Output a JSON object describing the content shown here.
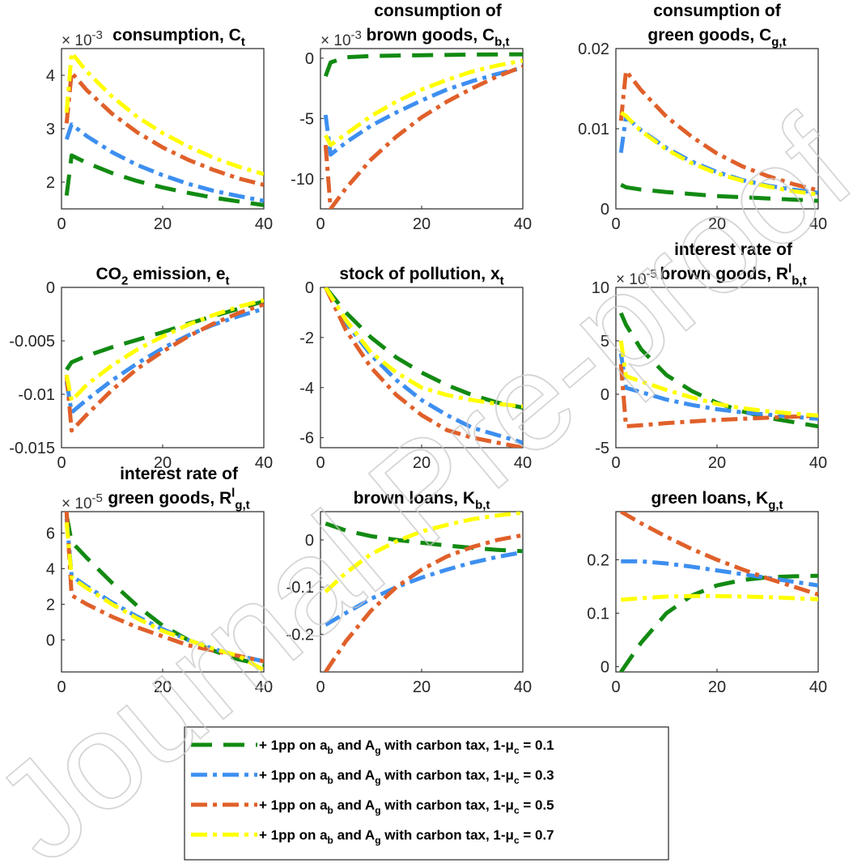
{
  "legend": [
    {
      "text": "+ 1pp on a_b and A_g with carbon tax, 1-μ_c = 0.1",
      "color": "#128a12",
      "dash": "26,14"
    },
    {
      "text": "+ 1pp on a_b and A_g with carbon tax, 1-μ_c = 0.3",
      "color": "#3d8ff0",
      "dash": "20,7,5,7"
    },
    {
      "text": "+ 1pp on a_b and A_g with carbon tax, 1-μ_c = 0.5",
      "color": "#e0602a",
      "dash": "20,7,5,7"
    },
    {
      "text": "+ 1pp on a_b and A_g with carbon tax, 1-μ_c = 0.7",
      "color": "#ffff00",
      "dash": "20,7,5,7"
    }
  ],
  "watermark": "Journal Pre-proof",
  "chart_data": [
    {
      "type": "line",
      "title": [
        "consumption, C_t"
      ],
      "exponent": "× 10^-3",
      "xlim": [
        0,
        40
      ],
      "ylim": [
        1.5,
        4.5
      ],
      "xticks": [
        0,
        20,
        40
      ],
      "yticks": [
        2,
        3,
        4
      ],
      "series": [
        {
          "x": [
            1,
            2,
            5,
            10,
            15,
            20,
            25,
            30,
            35,
            40
          ],
          "values": [
            1.75,
            2.5,
            2.36,
            2.17,
            2.02,
            1.9,
            1.8,
            1.71,
            1.64,
            1.57
          ]
        },
        {
          "x": [
            1,
            2,
            5,
            10,
            15,
            20,
            25,
            30,
            35,
            40
          ],
          "values": [
            2.8,
            3.08,
            2.86,
            2.56,
            2.32,
            2.13,
            1.97,
            1.84,
            1.74,
            1.65
          ]
        },
        {
          "x": [
            1,
            2,
            5,
            10,
            15,
            20,
            25,
            30,
            35,
            40
          ],
          "values": [
            3.1,
            4.05,
            3.72,
            3.28,
            2.93,
            2.65,
            2.42,
            2.23,
            2.07,
            1.95
          ]
        },
        {
          "x": [
            1,
            2,
            5,
            10,
            15,
            20,
            25,
            30,
            35,
            40
          ],
          "values": [
            3.3,
            4.42,
            4.07,
            3.6,
            3.22,
            2.92,
            2.67,
            2.46,
            2.29,
            2.15
          ]
        }
      ]
    },
    {
      "type": "line",
      "title": [
        "consumption of",
        "brown goods, C_b,t"
      ],
      "exponent": "× 10^-3",
      "xlim": [
        0,
        40
      ],
      "ylim": [
        -12.5,
        0.8
      ],
      "xticks": [
        0,
        20,
        40
      ],
      "yticks": [
        -10,
        -5,
        0
      ],
      "series": [
        {
          "x": [
            1,
            2,
            5,
            10,
            15,
            20,
            30,
            40
          ],
          "values": [
            -1.5,
            -0.35,
            0.08,
            0.18,
            0.22,
            0.25,
            0.3,
            0.32
          ]
        },
        {
          "x": [
            1,
            2,
            5,
            10,
            15,
            20,
            25,
            30,
            35,
            40
          ],
          "values": [
            -4.7,
            -8.0,
            -7.0,
            -5.6,
            -4.5,
            -3.5,
            -2.6,
            -1.9,
            -1.3,
            -0.8
          ]
        },
        {
          "x": [
            1,
            2,
            5,
            10,
            15,
            20,
            25,
            30,
            35,
            40
          ],
          "values": [
            -7.2,
            -12.5,
            -10.8,
            -8.4,
            -6.5,
            -4.9,
            -3.6,
            -2.5,
            -1.5,
            -0.7
          ]
        },
        {
          "x": [
            1,
            2,
            5,
            10,
            15,
            20,
            25,
            30,
            35,
            40
          ],
          "values": [
            -6.4,
            -7.2,
            -6.3,
            -4.8,
            -3.6,
            -2.6,
            -1.8,
            -1.1,
            -0.6,
            -0.2
          ]
        }
      ]
    },
    {
      "type": "line",
      "title": [
        "consumption of",
        "green goods, C_g,t"
      ],
      "exponent": "",
      "xlim": [
        0,
        40
      ],
      "ylim": [
        0,
        0.02
      ],
      "xticks": [
        0,
        20,
        40
      ],
      "yticks": [
        0,
        0.01,
        0.02
      ],
      "series": [
        {
          "x": [
            1,
            2,
            5,
            10,
            20,
            30,
            40
          ],
          "values": [
            0.003,
            0.0027,
            0.0024,
            0.0021,
            0.0016,
            0.0013,
            0.001
          ]
        },
        {
          "x": [
            1,
            2,
            5,
            10,
            15,
            20,
            25,
            30,
            35,
            40
          ],
          "values": [
            0.007,
            0.0115,
            0.0098,
            0.0076,
            0.0059,
            0.0046,
            0.0036,
            0.0029,
            0.0024,
            0.002
          ]
        },
        {
          "x": [
            1,
            2,
            5,
            10,
            15,
            20,
            25,
            30,
            35,
            40
          ],
          "values": [
            0.011,
            0.0172,
            0.0148,
            0.0115,
            0.009,
            0.0069,
            0.0053,
            0.0041,
            0.0031,
            0.0023
          ]
        },
        {
          "x": [
            1,
            2,
            5,
            10,
            15,
            20,
            25,
            30,
            35,
            40
          ],
          "values": [
            0.012,
            0.0116,
            0.0097,
            0.0074,
            0.0057,
            0.0044,
            0.0035,
            0.0028,
            0.0022,
            0.0018
          ]
        }
      ]
    },
    {
      "type": "line",
      "title": [
        "CO_2 emission, e_t"
      ],
      "exponent": "",
      "xlim": [
        0,
        40
      ],
      "ylim": [
        -0.015,
        0
      ],
      "xticks": [
        0,
        20,
        40
      ],
      "yticks": [
        -0.015,
        -0.01,
        -0.005,
        0
      ],
      "series": [
        {
          "x": [
            1,
            2,
            5,
            10,
            15,
            20,
            25,
            30,
            35,
            40
          ],
          "values": [
            -0.0077,
            -0.007,
            -0.0064,
            -0.0056,
            -0.0049,
            -0.0042,
            -0.0034,
            -0.0027,
            -0.002,
            -0.0013
          ]
        },
        {
          "x": [
            1,
            2,
            5,
            10,
            15,
            20,
            25,
            30,
            35,
            40
          ],
          "values": [
            -0.0088,
            -0.0117,
            -0.0105,
            -0.0087,
            -0.0071,
            -0.0057,
            -0.0045,
            -0.0035,
            -0.0027,
            -0.002
          ]
        },
        {
          "x": [
            1,
            2,
            5,
            10,
            15,
            20,
            25,
            30,
            35,
            40
          ],
          "values": [
            -0.0082,
            -0.0134,
            -0.0119,
            -0.0096,
            -0.0076,
            -0.006,
            -0.0046,
            -0.0034,
            -0.0024,
            -0.0016
          ]
        },
        {
          "x": [
            1,
            2,
            5,
            10,
            15,
            20,
            25,
            30,
            35,
            40
          ],
          "values": [
            -0.0082,
            -0.0106,
            -0.0091,
            -0.0073,
            -0.0058,
            -0.0046,
            -0.0035,
            -0.0026,
            -0.0018,
            -0.0012
          ]
        }
      ]
    },
    {
      "type": "line",
      "title": [
        "stock of pollution, x_t"
      ],
      "exponent": "",
      "xlim": [
        0,
        40
      ],
      "ylim": [
        -6.4,
        0
      ],
      "xticks": [
        0,
        20,
        40
      ],
      "yticks": [
        -6,
        -4,
        -2,
        0
      ],
      "series": [
        {
          "x": [
            1,
            5,
            10,
            15,
            20,
            25,
            30,
            35,
            40
          ],
          "values": [
            0,
            -1.0,
            -2.0,
            -2.8,
            -3.4,
            -3.9,
            -4.3,
            -4.6,
            -4.8
          ]
        },
        {
          "x": [
            1,
            5,
            10,
            15,
            20,
            25,
            30,
            35,
            40
          ],
          "values": [
            0,
            -1.4,
            -2.7,
            -3.7,
            -4.5,
            -5.1,
            -5.6,
            -5.9,
            -6.2
          ]
        },
        {
          "x": [
            1,
            5,
            10,
            15,
            20,
            25,
            30,
            35,
            40
          ],
          "values": [
            0,
            -1.7,
            -3.2,
            -4.3,
            -5.1,
            -5.7,
            -6.0,
            -6.2,
            -6.4
          ]
        },
        {
          "x": [
            1,
            5,
            10,
            15,
            20,
            25,
            30,
            35,
            40
          ],
          "values": [
            0,
            -1.3,
            -2.6,
            -3.4,
            -4.0,
            -4.3,
            -4.5,
            -4.65,
            -4.75
          ]
        }
      ]
    },
    {
      "type": "line",
      "title": [
        "interest rate of",
        "brown goods, R^l_b,t"
      ],
      "exponent": "× 10^-5",
      "xlim": [
        0,
        40
      ],
      "ylim": [
        -5,
        10
      ],
      "xticks": [
        0,
        20,
        40
      ],
      "yticks": [
        -5,
        0,
        5,
        10
      ],
      "series": [
        {
          "x": [
            1,
            2,
            5,
            10,
            15,
            20,
            25,
            30,
            35,
            40
          ],
          "values": [
            7.6,
            6.5,
            4.2,
            1.8,
            0.3,
            -0.8,
            -1.6,
            -2.2,
            -2.6,
            -3.0
          ]
        },
        {
          "x": [
            1,
            2,
            5,
            10,
            15,
            20,
            25,
            30,
            35,
            40
          ],
          "values": [
            3.8,
            0.6,
            0.2,
            -0.5,
            -1.0,
            -1.4,
            -1.7,
            -1.9,
            -2.1,
            -2.3
          ]
        },
        {
          "x": [
            1,
            2,
            5,
            10,
            20,
            30,
            40
          ],
          "values": [
            2.8,
            -3.0,
            -2.9,
            -2.7,
            -2.4,
            -2.2,
            -2.0
          ]
        },
        {
          "x": [
            1,
            2,
            5,
            10,
            15,
            20,
            25,
            30,
            35,
            40
          ],
          "values": [
            5.0,
            1.7,
            1.2,
            0.4,
            -0.3,
            -0.9,
            -1.3,
            -1.6,
            -1.8,
            -2.0
          ]
        }
      ]
    },
    {
      "type": "line",
      "title": [
        "interest rate of",
        "green goods, R^l_g,t"
      ],
      "exponent": "× 10^-5",
      "xlim": [
        0,
        40
      ],
      "ylim": [
        -1.8,
        7.2
      ],
      "xticks": [
        0,
        20,
        40
      ],
      "yticks": [
        0,
        2,
        4,
        6
      ],
      "series": [
        {
          "x": [
            1,
            2,
            5,
            10,
            15,
            20,
            25,
            30,
            35,
            40
          ],
          "values": [
            7.0,
            5.5,
            4.6,
            3.2,
            1.9,
            0.8,
            0.0,
            -0.6,
            -1.1,
            -1.4
          ]
        },
        {
          "x": [
            1,
            2,
            5,
            10,
            15,
            20,
            25,
            30,
            35,
            40
          ],
          "values": [
            6.8,
            3.6,
            3.0,
            2.1,
            1.3,
            0.6,
            0.0,
            -0.5,
            -0.9,
            -1.2
          ]
        },
        {
          "x": [
            1,
            2,
            5,
            10,
            15,
            20,
            25,
            30,
            35,
            40
          ],
          "values": [
            7.2,
            2.5,
            2.0,
            1.3,
            0.7,
            0.2,
            -0.3,
            -0.6,
            -0.9,
            -1.2
          ]
        },
        {
          "x": [
            1,
            2,
            5,
            10,
            15,
            20,
            25,
            30,
            35,
            40
          ],
          "values": [
            6.6,
            3.5,
            2.9,
            2.0,
            1.2,
            0.5,
            0.0,
            -0.5,
            -0.9,
            -1.7
          ]
        }
      ]
    },
    {
      "type": "line",
      "title": [
        "brown loans, K_b,t"
      ],
      "exponent": "",
      "xlim": [
        0,
        40
      ],
      "ylim": [
        -0.28,
        0.06
      ],
      "xticks": [
        0,
        20,
        40
      ],
      "yticks": [
        -0.2,
        -0.1,
        0
      ],
      "series": [
        {
          "x": [
            1,
            5,
            10,
            15,
            20,
            25,
            30,
            35,
            40
          ],
          "values": [
            0.035,
            0.02,
            0.008,
            0.0,
            -0.006,
            -0.012,
            -0.017,
            -0.021,
            -0.024
          ]
        },
        {
          "x": [
            1,
            5,
            10,
            15,
            20,
            25,
            30,
            35,
            40
          ],
          "values": [
            -0.18,
            -0.155,
            -0.125,
            -0.1,
            -0.08,
            -0.063,
            -0.048,
            -0.036,
            -0.026
          ]
        },
        {
          "x": [
            1,
            5,
            10,
            15,
            20,
            25,
            30,
            35,
            40
          ],
          "values": [
            -0.28,
            -0.215,
            -0.15,
            -0.1,
            -0.063,
            -0.035,
            -0.015,
            0.0,
            0.01
          ]
        },
        {
          "x": [
            1,
            5,
            10,
            15,
            20,
            25,
            30,
            35,
            40
          ],
          "values": [
            -0.11,
            -0.07,
            -0.03,
            -0.003,
            0.018,
            0.032,
            0.044,
            0.052,
            0.058
          ]
        }
      ]
    },
    {
      "type": "line",
      "title": [
        "green loans, K_g,t"
      ],
      "exponent": "",
      "xlim": [
        0,
        40
      ],
      "ylim": [
        -0.01,
        0.29
      ],
      "xticks": [
        0,
        20,
        40
      ],
      "yticks": [
        0,
        0.1,
        0.2
      ],
      "series": [
        {
          "x": [
            1,
            5,
            10,
            15,
            20,
            25,
            30,
            35,
            40
          ],
          "values": [
            -0.01,
            0.045,
            0.1,
            0.133,
            0.152,
            0.162,
            0.167,
            0.169,
            0.17
          ]
        },
        {
          "x": [
            1,
            5,
            10,
            15,
            20,
            25,
            30,
            35,
            40
          ],
          "values": [
            0.197,
            0.197,
            0.193,
            0.187,
            0.18,
            0.173,
            0.166,
            0.159,
            0.152
          ]
        },
        {
          "x": [
            1,
            5,
            10,
            15,
            20,
            25,
            30,
            35,
            40
          ],
          "values": [
            0.29,
            0.268,
            0.243,
            0.22,
            0.2,
            0.182,
            0.165,
            0.15,
            0.135
          ]
        },
        {
          "x": [
            1,
            5,
            10,
            15,
            20,
            25,
            30,
            35,
            40
          ],
          "values": [
            0.125,
            0.128,
            0.131,
            0.132,
            0.132,
            0.131,
            0.13,
            0.128,
            0.126
          ]
        }
      ]
    }
  ]
}
